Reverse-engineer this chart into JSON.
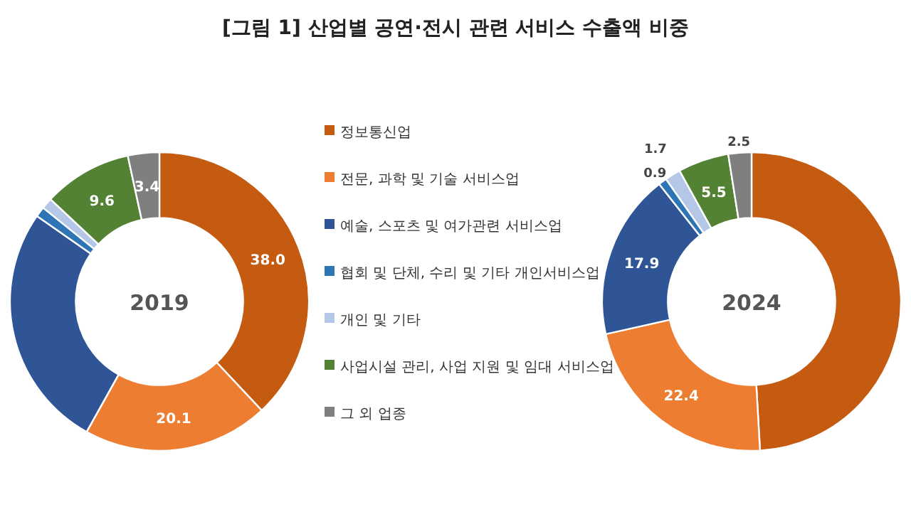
{
  "chart_data": [
    {
      "type": "donut",
      "title": "[그림 1] 산업별 공연·전시 관련 서비스 수출액 비중",
      "subtitle": "2019",
      "categories": [
        "정보통신업",
        "전문, 과학 및 기술 서비스업",
        "예술, 스포츠 및 여가관련 서비스업",
        "협회 및 단체, 수리 및 기타 개인서비스업",
        "개인 및 기타",
        "사업시설 관리, 사업 지원 및 임대 서비스업",
        "그 외 업종"
      ],
      "values": [
        38.0,
        20.1,
        26.6,
        1.1,
        1.2,
        9.6,
        3.4
      ],
      "value_labels": [
        "38.0",
        "20.1",
        null,
        null,
        null,
        "9.6",
        "3.4"
      ],
      "colors": [
        "#c55a11",
        "#ed7d31",
        "#2f5597",
        "#2e75b6",
        "#b4c7e7",
        "#548235",
        "#7f7f7f"
      ],
      "legend": "right"
    },
    {
      "type": "donut",
      "subtitle": "2024",
      "values": [
        49.1,
        22.4,
        17.9,
        0.9,
        1.7,
        5.5,
        2.5
      ],
      "value_labels": [
        null,
        "22.4",
        "17.9",
        "0.9",
        "1.7",
        "5.5",
        "2.5"
      ],
      "colors": [
        "#c55a11",
        "#ed7d31",
        "#2f5597",
        "#2e75b6",
        "#b4c7e7",
        "#548235",
        "#7f7f7f"
      ]
    }
  ]
}
